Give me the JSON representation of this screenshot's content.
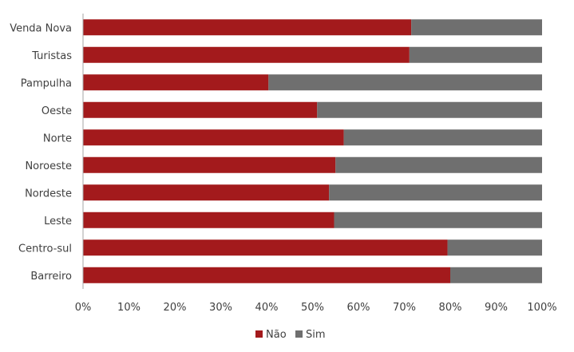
{
  "chart_data": {
    "type": "bar",
    "orientation": "horizontal",
    "stacked": "percent",
    "categories": [
      "Venda Nova",
      "Turistas",
      "Pampulha",
      "Oeste",
      "Norte",
      "Noroeste",
      "Nordeste",
      "Leste",
      "Centro-sul",
      "Barreiro"
    ],
    "series": [
      {
        "name": "Não",
        "color": "#a31a1c",
        "values": [
          71.5,
          71.1,
          40.4,
          51.0,
          56.8,
          55.0,
          53.6,
          54.7,
          79.4,
          80.0
        ]
      },
      {
        "name": "Sim",
        "color": "#6f6f6f",
        "values": [
          28.5,
          28.9,
          59.6,
          49.0,
          43.2,
          45.0,
          46.4,
          45.3,
          20.6,
          20.0
        ]
      }
    ],
    "x_ticks": [
      "0%",
      "10%",
      "20%",
      "30%",
      "40%",
      "50%",
      "60%",
      "70%",
      "80%",
      "90%",
      "100%"
    ],
    "xlim": [
      0,
      100
    ],
    "title": "",
    "xlabel": "",
    "ylabel": "",
    "grid": false,
    "legend": {
      "position": "bottom",
      "entries": [
        "Não",
        "Sim"
      ]
    }
  }
}
